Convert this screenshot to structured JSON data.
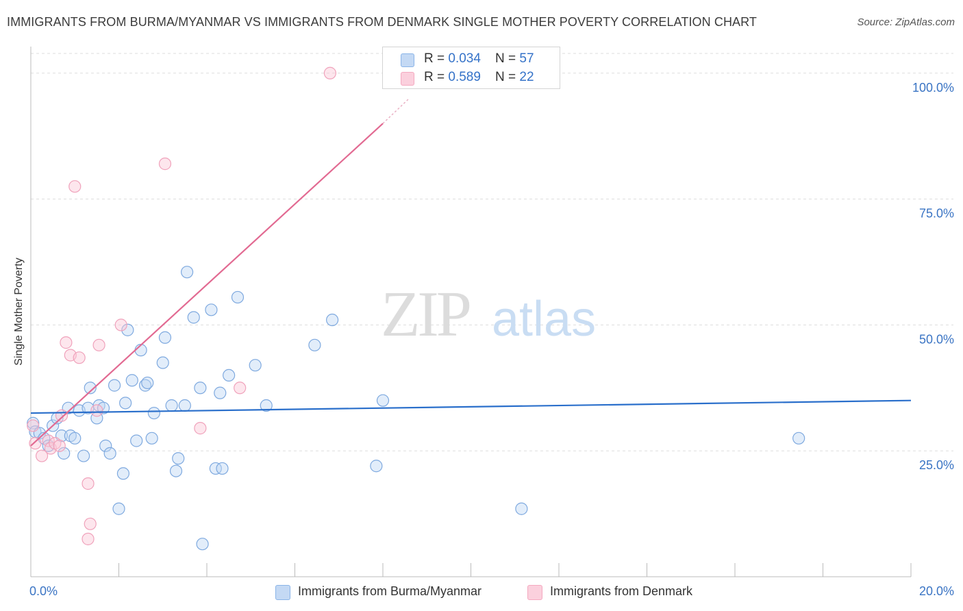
{
  "title": "IMMIGRANTS FROM BURMA/MYANMAR VS IMMIGRANTS FROM DENMARK SINGLE MOTHER POVERTY CORRELATION CHART",
  "source": "Source: ZipAtlas.com",
  "watermark": {
    "zip": "ZIP",
    "atlas": "atlas"
  },
  "legend": {
    "r_label": "R = ",
    "n_label": "N = ",
    "rows": [
      {
        "r": "0.034",
        "n": "57"
      },
      {
        "r": "0.589",
        "n": "22"
      }
    ]
  },
  "chart_data": {
    "type": "scatter",
    "title": "IMMIGRANTS FROM BURMA/MYANMAR VS IMMIGRANTS FROM DENMARK SINGLE MOTHER POVERTY CORRELATION CHART",
    "xlabel": "",
    "ylabel": "Single Mother Poverty",
    "xlim": [
      0,
      20
    ],
    "ylim": [
      0,
      105
    ],
    "x_tick_labels": [
      {
        "value": 0,
        "label": "0.0%"
      },
      {
        "value": 20,
        "label": "20.0%"
      }
    ],
    "y_tick_labels": [
      {
        "value": 25,
        "label": "25.0%"
      },
      {
        "value": 50,
        "label": "50.0%"
      },
      {
        "value": 75,
        "label": "75.0%"
      },
      {
        "value": 100,
        "label": "100.0%"
      }
    ],
    "grid": true,
    "legend_position": "top-center",
    "series": [
      {
        "name": "Immigrants from Burma/Myanmar",
        "color": "#8ab4e8",
        "line_color": "#2a6fcb",
        "r": 0.034,
        "n": 57,
        "trend": {
          "x": [
            0,
            20
          ],
          "y": [
            32.5,
            35.0
          ]
        },
        "points": [
          {
            "x": 0.05,
            "y": 30.5
          },
          {
            "x": 0.1,
            "y": 28.8
          },
          {
            "x": 0.2,
            "y": 28.5
          },
          {
            "x": 0.3,
            "y": 27.5
          },
          {
            "x": 0.4,
            "y": 26.0
          },
          {
            "x": 0.5,
            "y": 30.0
          },
          {
            "x": 0.6,
            "y": 31.5
          },
          {
            "x": 0.7,
            "y": 28.0
          },
          {
            "x": 0.75,
            "y": 24.5
          },
          {
            "x": 0.85,
            "y": 33.5
          },
          {
            "x": 0.9,
            "y": 28.0
          },
          {
            "x": 1.0,
            "y": 27.5
          },
          {
            "x": 1.1,
            "y": 33.0
          },
          {
            "x": 1.2,
            "y": 24.0
          },
          {
            "x": 1.3,
            "y": 33.5
          },
          {
            "x": 1.35,
            "y": 37.5
          },
          {
            "x": 1.5,
            "y": 31.5
          },
          {
            "x": 1.55,
            "y": 34.0
          },
          {
            "x": 1.65,
            "y": 33.5
          },
          {
            "x": 1.7,
            "y": 26.0
          },
          {
            "x": 1.8,
            "y": 24.5
          },
          {
            "x": 1.9,
            "y": 38.0
          },
          {
            "x": 2.0,
            "y": 13.5
          },
          {
            "x": 2.1,
            "y": 20.5
          },
          {
            "x": 2.15,
            "y": 34.5
          },
          {
            "x": 2.2,
            "y": 49.0
          },
          {
            "x": 2.3,
            "y": 39.0
          },
          {
            "x": 2.4,
            "y": 27.0
          },
          {
            "x": 2.5,
            "y": 45.0
          },
          {
            "x": 2.6,
            "y": 38.0
          },
          {
            "x": 2.65,
            "y": 38.5
          },
          {
            "x": 2.75,
            "y": 27.5
          },
          {
            "x": 2.8,
            "y": 32.5
          },
          {
            "x": 3.0,
            "y": 42.5
          },
          {
            "x": 3.05,
            "y": 47.5
          },
          {
            "x": 3.2,
            "y": 34.0
          },
          {
            "x": 3.3,
            "y": 21.0
          },
          {
            "x": 3.35,
            "y": 23.5
          },
          {
            "x": 3.5,
            "y": 34.0
          },
          {
            "x": 3.55,
            "y": 60.5
          },
          {
            "x": 3.7,
            "y": 51.5
          },
          {
            "x": 3.85,
            "y": 37.5
          },
          {
            "x": 3.9,
            "y": 6.5
          },
          {
            "x": 4.1,
            "y": 53.0
          },
          {
            "x": 4.2,
            "y": 21.5
          },
          {
            "x": 4.3,
            "y": 36.5
          },
          {
            "x": 4.35,
            "y": 21.5
          },
          {
            "x": 4.5,
            "y": 40.0
          },
          {
            "x": 4.7,
            "y": 55.5
          },
          {
            "x": 5.1,
            "y": 42.0
          },
          {
            "x": 5.35,
            "y": 34.0
          },
          {
            "x": 6.45,
            "y": 46.0
          },
          {
            "x": 6.85,
            "y": 51.0
          },
          {
            "x": 7.85,
            "y": 22.0
          },
          {
            "x": 8.0,
            "y": 35.0
          },
          {
            "x": 11.15,
            "y": 13.5
          },
          {
            "x": 17.45,
            "y": 27.5
          }
        ]
      },
      {
        "name": "Immigrants from Denmark",
        "color": "#f4a9c0",
        "line_color": "#e26a92",
        "r": 0.589,
        "n": 22,
        "trend": {
          "x": [
            0,
            8.0
          ],
          "y": [
            26.0,
            90.0
          ],
          "dashed_extension": {
            "x": [
              8.0,
              8.6
            ],
            "y": [
              90.0,
              95.0
            ]
          }
        },
        "points": [
          {
            "x": 0.05,
            "y": 30.0
          },
          {
            "x": 0.1,
            "y": 26.5
          },
          {
            "x": 0.25,
            "y": 24.0
          },
          {
            "x": 0.4,
            "y": 27.0
          },
          {
            "x": 0.45,
            "y": 25.5
          },
          {
            "x": 0.55,
            "y": 26.5
          },
          {
            "x": 0.65,
            "y": 26.0
          },
          {
            "x": 0.7,
            "y": 32.0
          },
          {
            "x": 0.8,
            "y": 46.5
          },
          {
            "x": 0.9,
            "y": 44.0
          },
          {
            "x": 1.0,
            "y": 77.5
          },
          {
            "x": 1.1,
            "y": 43.5
          },
          {
            "x": 1.3,
            "y": 18.5
          },
          {
            "x": 1.35,
            "y": 10.5
          },
          {
            "x": 1.3,
            "y": 7.5
          },
          {
            "x": 1.5,
            "y": 33.0
          },
          {
            "x": 1.55,
            "y": 46.0
          },
          {
            "x": 2.05,
            "y": 50.0
          },
          {
            "x": 3.05,
            "y": 82.0
          },
          {
            "x": 3.85,
            "y": 29.5
          },
          {
            "x": 4.75,
            "y": 37.5
          },
          {
            "x": 6.8,
            "y": 100.0
          }
        ]
      }
    ]
  }
}
